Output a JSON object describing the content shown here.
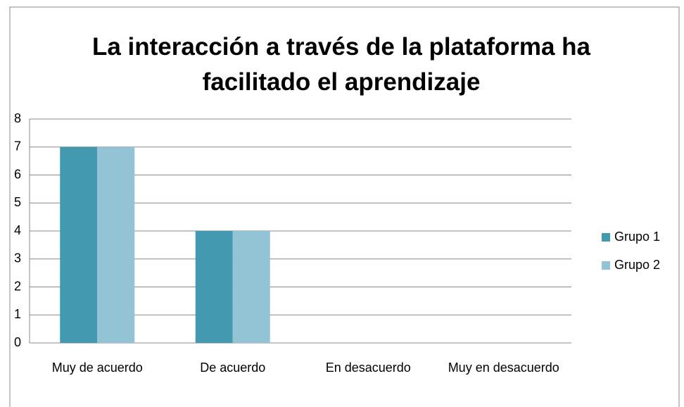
{
  "chart_data": {
    "type": "bar",
    "title": "La interacción a través de la plataforma ha facilitado el aprendizaje",
    "categories": [
      "Muy de acuerdo",
      "De acuerdo",
      "En desacuerdo",
      "Muy en desacuerdo"
    ],
    "series": [
      {
        "name": "Grupo 1",
        "color": "#4299b0",
        "values": [
          7,
          4,
          0,
          0
        ]
      },
      {
        "name": "Grupo 2",
        "color": "#93c4d6",
        "values": [
          7,
          4,
          0,
          0
        ]
      }
    ],
    "ylim": [
      0,
      8
    ],
    "yticks": [
      0,
      1,
      2,
      3,
      4,
      5,
      6,
      7,
      8
    ],
    "grid": true,
    "legend": "right"
  }
}
